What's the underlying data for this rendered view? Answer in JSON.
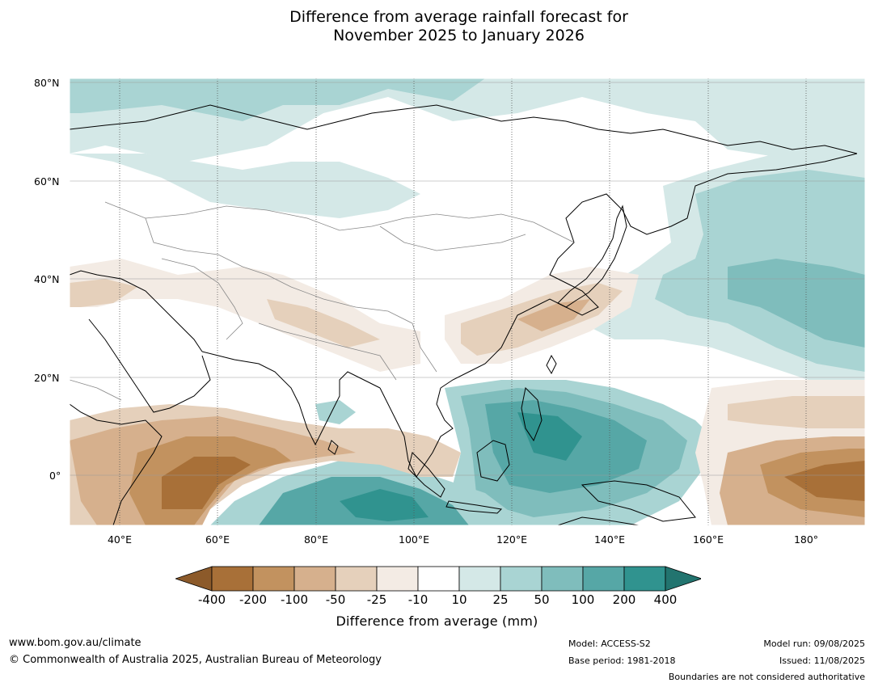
{
  "title": {
    "line1": "Difference from average rainfall forecast for",
    "line2": "November 2025 to January 2026"
  },
  "map": {
    "latitude_labels": [
      "80°N",
      "60°N",
      "40°N",
      "20°N",
      "0°"
    ],
    "longitude_labels": [
      "40°E",
      "60°E",
      "80°E",
      "100°E",
      "120°E",
      "140°E",
      "160°E",
      "180°"
    ],
    "extent": {
      "lon_min": 30,
      "lon_max": 192,
      "lat_min": -10,
      "lat_max": 81
    }
  },
  "legend": {
    "tick_labels": [
      "-400",
      "-200",
      "-100",
      "-50",
      "-25",
      "-10",
      "10",
      "25",
      "50",
      "100",
      "200",
      "400"
    ],
    "colors": [
      "#8c5a2a",
      "#a87038",
      "#c2925f",
      "#d6b08d",
      "#e5d0bb",
      "#f3ebe4",
      "#ffffff",
      "#d4e8e7",
      "#a9d4d3",
      "#7fbdbc",
      "#56a7a6",
      "#30938f",
      "#22746f"
    ],
    "label": "Difference from average (mm)"
  },
  "footer": {
    "website": "www.bom.gov.au/climate",
    "copyright": "© Commonwealth of Australia 2025, Australian Bureau of Meteorology",
    "model": "Model: ACCESS-S2",
    "base_period": "Base period: 1981-2018",
    "model_run": "Model run: 09/08/2025",
    "issued": "Issued: 11/08/2025",
    "disclaimer": "Boundaries are not considered authoritative"
  }
}
